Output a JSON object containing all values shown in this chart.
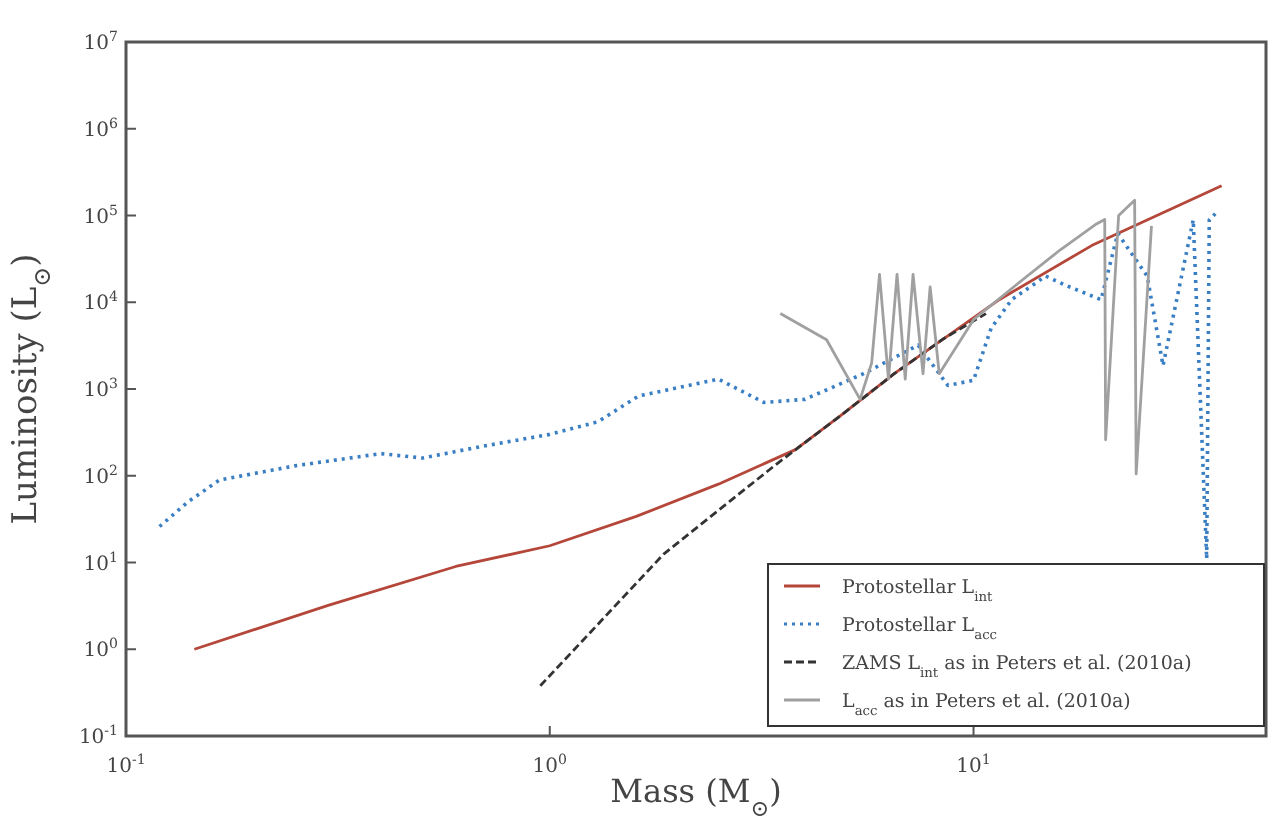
{
  "chart_data": {
    "type": "line",
    "xlabel": "Mass (M$_{⊙}$)",
    "ylabel": "Luminosity (L$_{⊙}$)",
    "log": "xy",
    "grid": false,
    "legend": "bottom right",
    "xlim": [
      0.1,
      49
    ],
    "ylim": [
      0.1,
      10000000
    ],
    "xticks": [
      {
        "value": 0.1,
        "label": "10$^{-1}$"
      },
      {
        "value": 1,
        "label": "10$^{0}$"
      },
      {
        "value": 10,
        "label": "10$^{1}$"
      }
    ],
    "yticks": [
      {
        "value": 0.1,
        "label": "10$^{-1}$"
      },
      {
        "value": 1,
        "label": "10$^{0}$"
      },
      {
        "value": 10,
        "label": "10$^{1}$"
      },
      {
        "value": 100,
        "label": "10$^{2}$"
      },
      {
        "value": 1000,
        "label": "10$^{3}$"
      },
      {
        "value": 10000,
        "label": "10$^{4}$"
      },
      {
        "value": 100000,
        "label": "10$^{5}$"
      },
      {
        "value": 1000000,
        "label": "10$^{6}$"
      },
      {
        "value": 10000000,
        "label": "10$^{7}$"
      }
    ],
    "series": [
      {
        "name": "Protostellar L$_{int}$",
        "color": "#b5473a",
        "line_style": "solid",
        "x": [
          0.145,
          0.3,
          0.6,
          1,
          1.6,
          2.5,
          3.8,
          4.9,
          6.5,
          11.5,
          19,
          38.5
        ],
        "values": [
          1,
          3.2,
          9,
          15.6,
          34,
          80,
          200,
          510,
          1500,
          10700,
          45000,
          220000
        ]
      },
      {
        "name": "Protostellar L$_{acc}$",
        "color": "#3a7fc4",
        "line_style": "dotted",
        "x": [
          0.12,
          0.14,
          0.166,
          0.25,
          0.4,
          0.5,
          0.7,
          1,
          1.3,
          1.62,
          2.5,
          3.2,
          4,
          5.5,
          7.4,
          8.7,
          10,
          11,
          12.3,
          14.8,
          16.6,
          20,
          21.9,
          25.7,
          28,
          33,
          35.5,
          36,
          37.2
        ],
        "values": [
          26,
          50,
          89,
          130,
          180,
          160,
          220,
          300,
          420,
          830,
          1300,
          700,
          760,
          1500,
          3200,
          1100,
          1260,
          5000,
          10700,
          20000,
          15500,
          10700,
          62000,
          20000,
          1860,
          89000,
          11,
          89000,
          105000
        ]
      },
      {
        "name": "ZAMS L$_{int}$ as in Peters et al. (2010a)",
        "color": "#333333",
        "line_style": "dashed",
        "x": [
          0.95,
          1.86,
          3.4,
          4.9,
          6.5,
          8.5,
          10.7
        ],
        "values": [
          0.38,
          12.6,
          132,
          510,
          1500,
          3800,
          7400
        ]
      },
      {
        "name": "L$_{acc}$ as in Peters et al. (2010a)",
        "color": "#a0a0a0",
        "line_style": "solid",
        "x": [
          3.5,
          4.5,
          5.4,
          5.75,
          6.0,
          6.3,
          6.6,
          6.9,
          7.2,
          7.6,
          7.9,
          8.3,
          10,
          12.6,
          16,
          19.5,
          20.4,
          20.5,
          22,
          24,
          24.2,
          26.3
        ],
        "values": [
          7400,
          3700,
          760,
          2000,
          21000,
          1300,
          21000,
          1300,
          21000,
          1500,
          15000,
          1500,
          6300,
          15800,
          40000,
          80000,
          90000,
          260,
          100000,
          150000,
          105,
          76000
        ]
      }
    ]
  }
}
